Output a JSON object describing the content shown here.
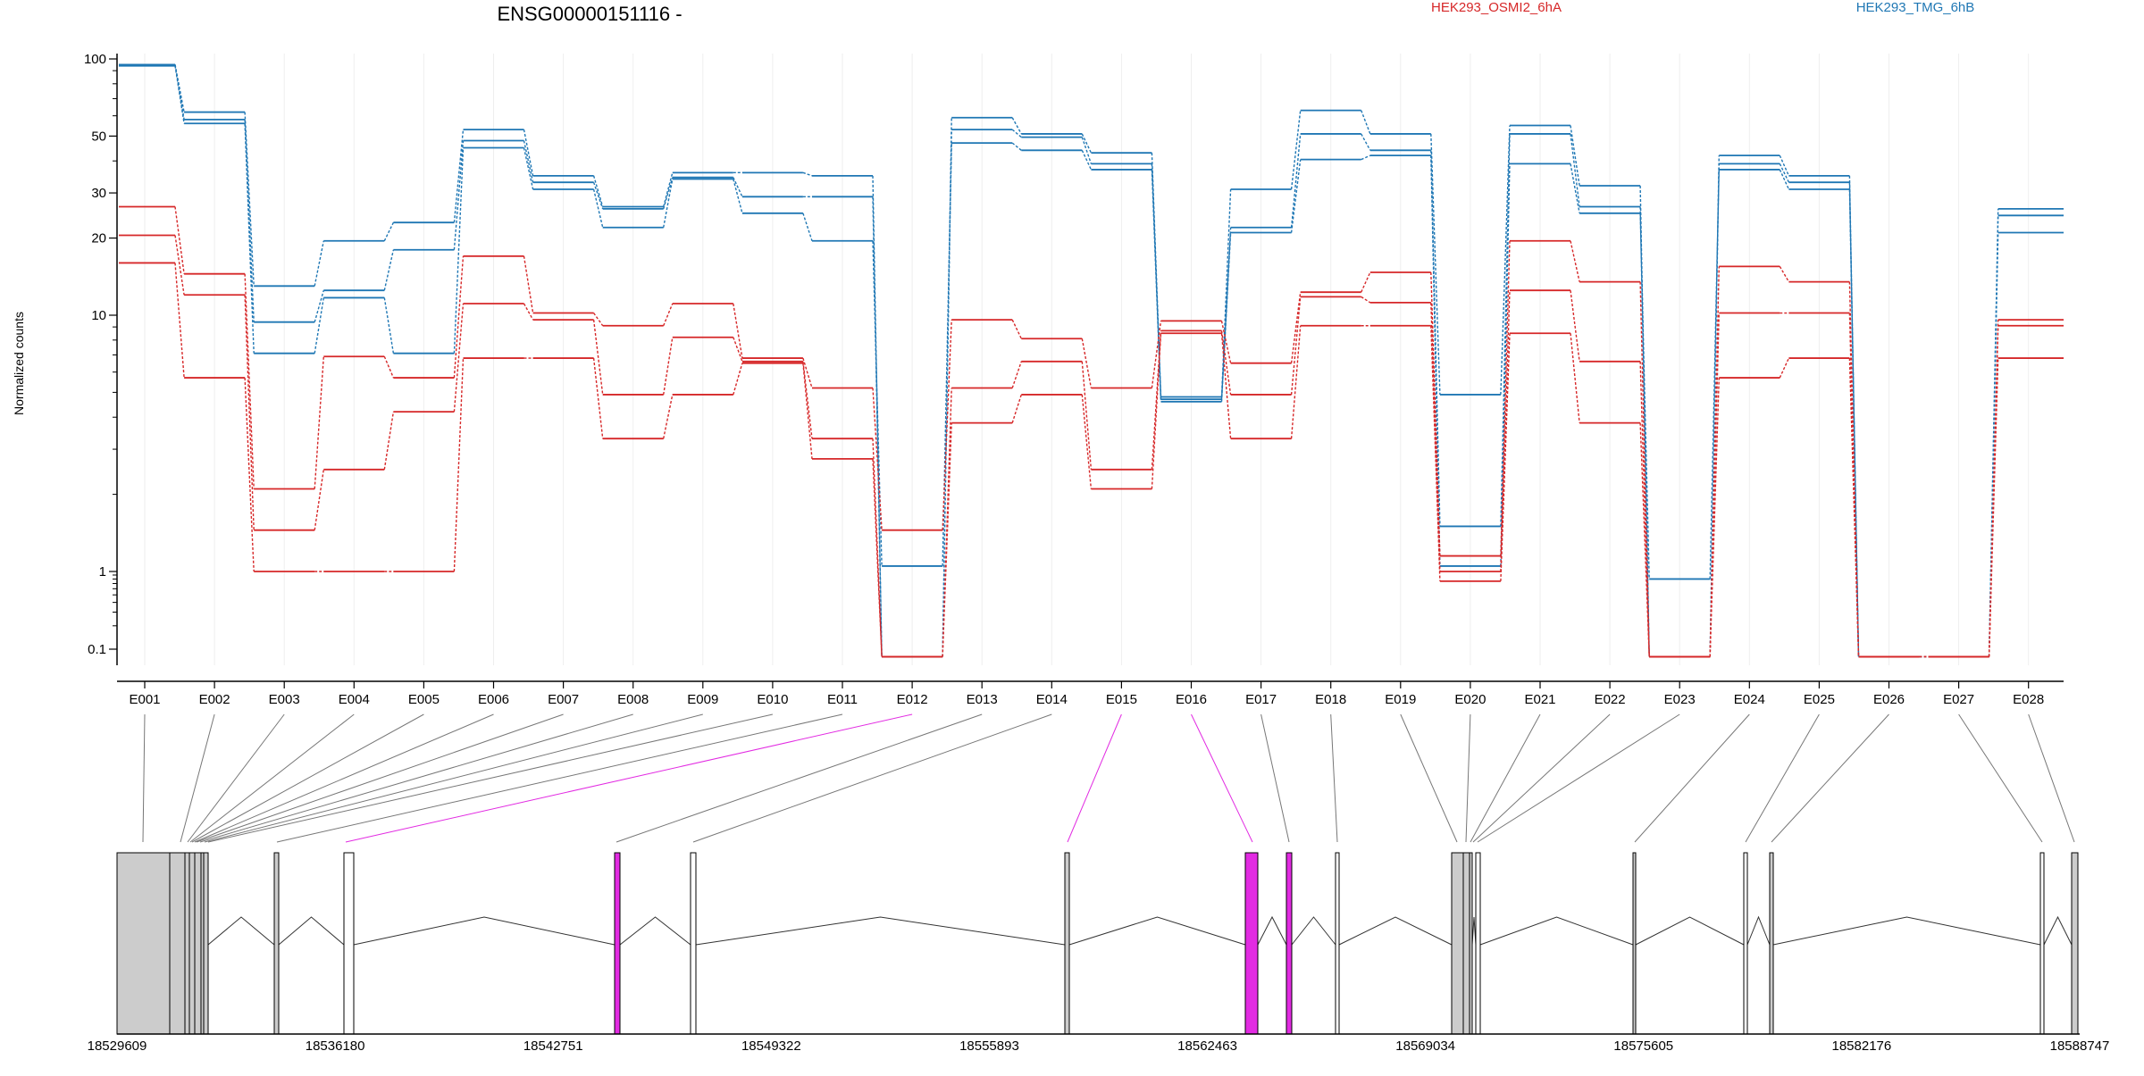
{
  "chart_data": {
    "type": "line",
    "title": "ENSG00000151116 -",
    "xlabel": "",
    "ylabel": "Normalized counts",
    "y_scale": "log",
    "ylim": [
      0.07,
      100
    ],
    "yticks": [
      0.1,
      1,
      10,
      20,
      30,
      50,
      100
    ],
    "ytick_labels": [
      "0.1",
      "1",
      "10",
      "20",
      "30",
      "50",
      "100"
    ],
    "grid": true,
    "legend": [
      {
        "label": "HEK293_OSMI2_6hA",
        "color": "#d62728"
      },
      {
        "label": "HEK293_TMG_6hB",
        "color": "#1f77b4"
      }
    ],
    "categories": [
      "E001",
      "E002",
      "E003",
      "E004",
      "E005",
      "E006",
      "E007",
      "E008",
      "E009",
      "E010",
      "E011",
      "E012",
      "E013",
      "E014",
      "E015",
      "E016",
      "E017",
      "E018",
      "E019",
      "E020",
      "E021",
      "E022",
      "E023",
      "E024",
      "E025",
      "E026",
      "E027",
      "E028"
    ],
    "series": [
      {
        "color": "#1f77b4",
        "values": [
          95,
          62,
          13,
          19.5,
          23,
          53,
          35,
          26.5,
          36,
          36,
          35,
          0.08,
          59,
          51,
          43,
          4.8,
          31,
          63,
          51,
          4.9,
          55,
          32,
          0.08,
          42,
          35,
          0.08,
          0.08,
          26
        ]
      },
      {
        "color": "#1f77b4",
        "values": [
          95,
          58,
          9.4,
          12.5,
          18,
          48,
          33,
          26,
          34.5,
          29,
          29,
          0.08,
          53,
          49.5,
          39,
          4.7,
          22,
          51,
          44,
          1.5,
          51,
          26.5,
          0.08,
          39,
          33,
          0.08,
          0.08,
          24.5
        ]
      },
      {
        "color": "#1f77b4",
        "values": [
          94,
          56,
          7.1,
          11.7,
          7.1,
          45,
          31,
          22,
          34,
          25,
          19.5,
          1.05,
          47,
          44,
          37,
          4.6,
          21,
          40.5,
          42,
          1.05,
          39,
          25,
          0.8,
          37,
          31,
          0.08,
          0.08,
          21
        ]
      },
      {
        "color": "#d62728",
        "values": [
          26.5,
          14.5,
          2.1,
          6.9,
          5.7,
          17,
          10.2,
          9.1,
          11.1,
          6.8,
          5.2,
          1.45,
          9.6,
          8.1,
          5.2,
          9.5,
          6.5,
          12.3,
          14.7,
          1.15,
          19.5,
          13.5,
          0.08,
          15.5,
          13.5,
          0.08,
          0.08,
          9.6
        ]
      },
      {
        "color": "#d62728",
        "values": [
          20.5,
          12,
          1.45,
          2.5,
          4.2,
          11.1,
          9.6,
          4.9,
          8.2,
          6.6,
          3.3,
          0.08,
          5.2,
          6.6,
          2.5,
          8.7,
          4.9,
          11.8,
          11.2,
          1.0,
          12.5,
          6.6,
          0.08,
          10.2,
          10.2,
          0.08,
          0.08,
          9.1
        ]
      },
      {
        "color": "#d62728",
        "values": [
          16,
          5.7,
          1.0,
          1.0,
          1.0,
          6.8,
          6.8,
          3.3,
          4.9,
          6.5,
          2.75,
          0.08,
          3.8,
          4.9,
          2.1,
          8.5,
          3.3,
          9.1,
          9.1,
          0.75,
          8.5,
          3.8,
          0.08,
          5.7,
          6.8,
          0.08,
          0.08,
          6.8
        ]
      }
    ],
    "gene_model": {
      "coordinate_ticks": [
        "18529609",
        "18536180",
        "18542751",
        "18549322",
        "18555893",
        "18562463",
        "18569034",
        "18575605",
        "18582176",
        "18588747"
      ],
      "highlighted_exons": [
        "E012",
        "E015",
        "E016"
      ],
      "highlight_color": "#e22be2",
      "exon_color": "#cccccc"
    }
  }
}
